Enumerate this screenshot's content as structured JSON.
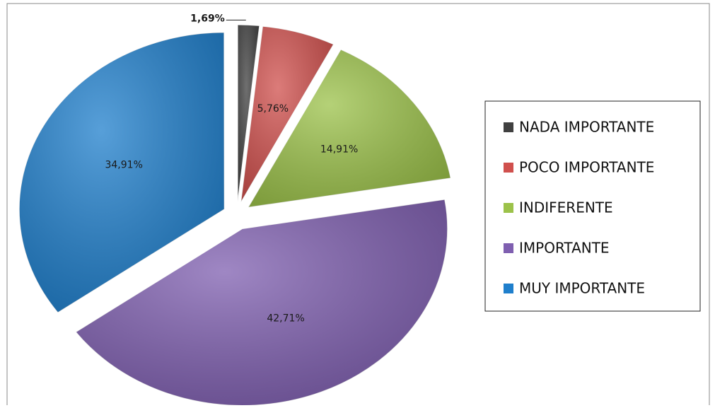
{
  "chart_data": {
    "type": "pie",
    "categories": [
      "NADA IMPORTANTE",
      "POCO IMPORTANTE",
      "INDIFERENTE",
      "IMPORTANTE",
      "MUY IMPORTANTE"
    ],
    "values": [
      1.69,
      5.76,
      14.91,
      42.71,
      34.91
    ],
    "value_labels": [
      "1,69%",
      "5,76%",
      "14,91%",
      "42,71%",
      "34,91%"
    ],
    "colors": [
      "#404040",
      "#d0504d",
      "#9cc24a",
      "#7f5fb0",
      "#1f7fcc"
    ],
    "legend": "right"
  }
}
